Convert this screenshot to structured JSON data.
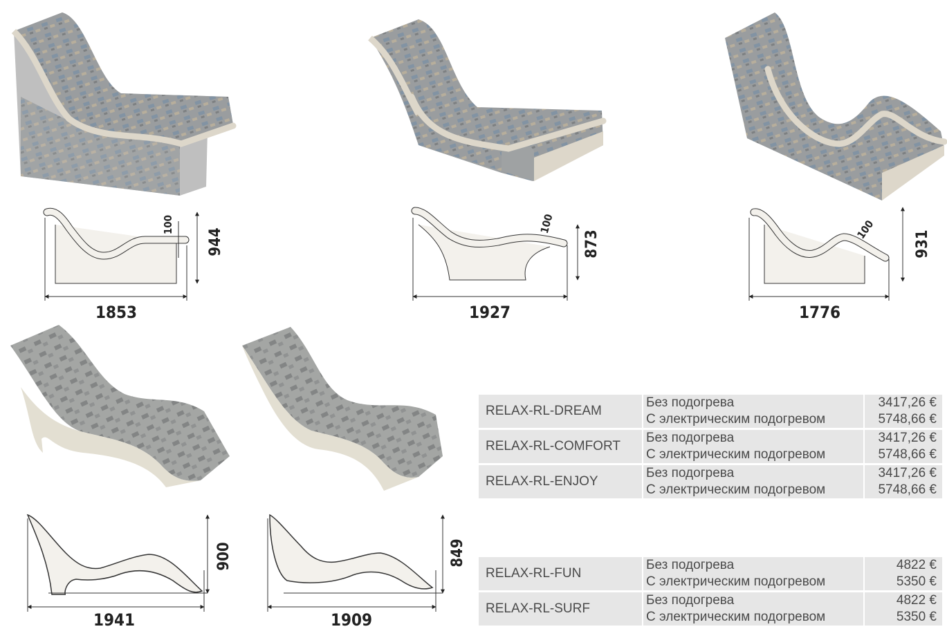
{
  "products": [
    {
      "id": "p1",
      "dimensions": {
        "width": "1853",
        "height": "944",
        "offset": "100"
      }
    },
    {
      "id": "p2",
      "dimensions": {
        "width": "1927",
        "height": "873",
        "offset": "100"
      }
    },
    {
      "id": "p3",
      "dimensions": {
        "width": "1776",
        "height": "931",
        "offset": "100"
      }
    },
    {
      "id": "p4",
      "dimensions": {
        "width": "1941",
        "height": "900"
      }
    },
    {
      "id": "p5",
      "dimensions": {
        "width": "1909",
        "height": "849"
      }
    }
  ],
  "price_table_1": {
    "rows": [
      {
        "model": "RELAX-RL-DREAM",
        "variants": [
          {
            "label": "Без подогрева",
            "price": "3417,26 €"
          },
          {
            "label": "С электрическим подогревом",
            "price": "5748,66 €"
          }
        ]
      },
      {
        "model": "RELAX-RL-COMFORT",
        "variants": [
          {
            "label": "Без подогрева",
            "price": "3417,26 €"
          },
          {
            "label": "С электрическим подогревом",
            "price": "5748,66 €"
          }
        ]
      },
      {
        "model": "RELAX-RL-ENJOY",
        "variants": [
          {
            "label": "Без подогрева",
            "price": "3417,26 €"
          },
          {
            "label": "С электрическим подогревом",
            "price": "5748,66 €"
          }
        ]
      }
    ]
  },
  "price_table_2": {
    "rows": [
      {
        "model": "RELAX-RL-FUN",
        "variants": [
          {
            "label": "Без подогрева",
            "price": "4822 €"
          },
          {
            "label": "С электрическим подогревом",
            "price": "5350 €"
          }
        ]
      },
      {
        "model": "RELAX-RL-SURF",
        "variants": [
          {
            "label": "Без подогрева",
            "price": "4822 €"
          },
          {
            "label": "С электрическим подогревом",
            "price": "5350 €"
          }
        ]
      }
    ]
  },
  "colors": {
    "mosaic": "#8f9294",
    "mosaic_dark": "#6d7072",
    "stone": "#e9e4d8",
    "table_bg": "#e6e6e6"
  }
}
